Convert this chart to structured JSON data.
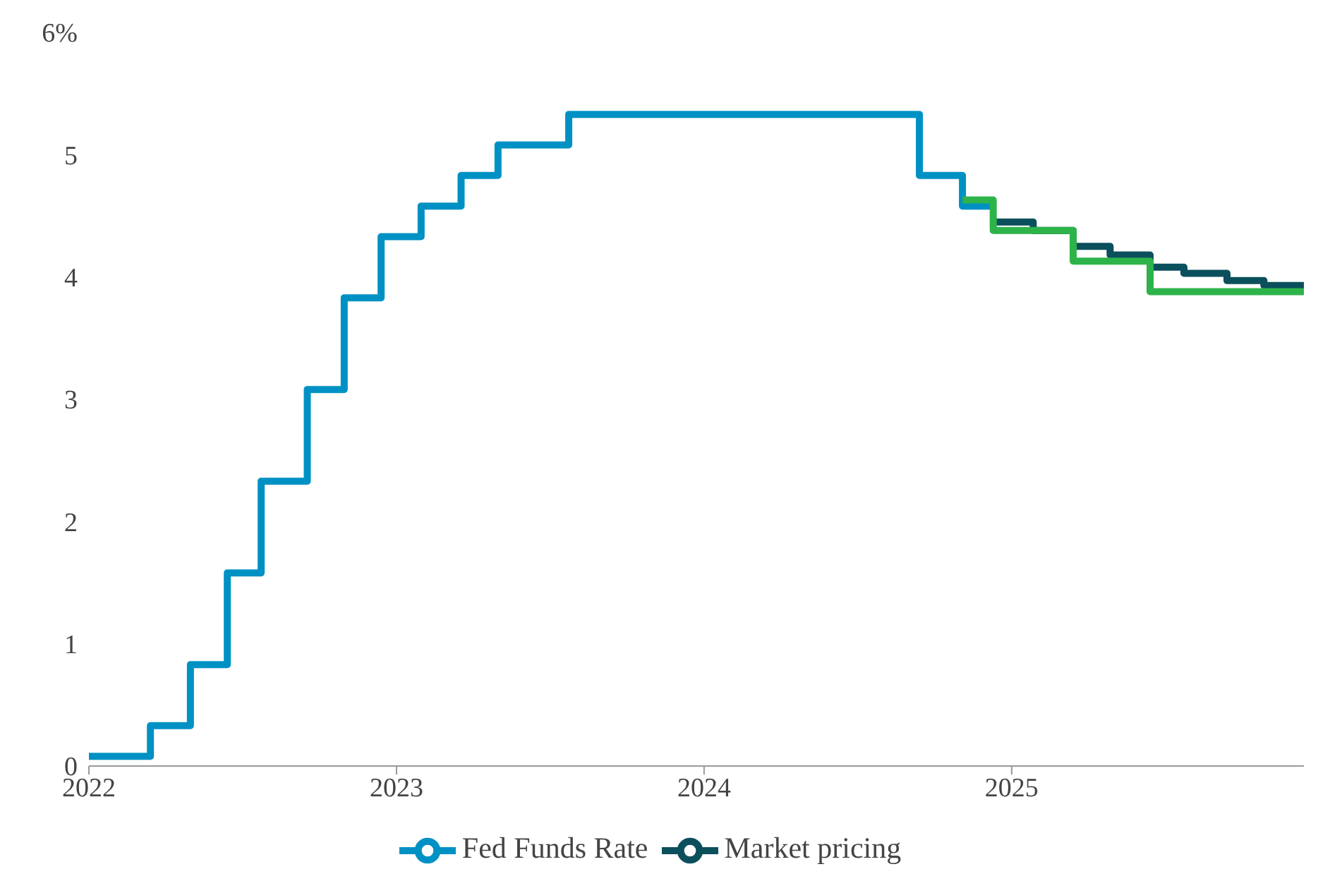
{
  "chart_data": {
    "type": "step",
    "xlim": [
      2022,
      2025.95
    ],
    "xticks": [
      2022,
      2023,
      2024,
      2025
    ],
    "ylim": [
      0,
      6
    ],
    "yticks": [
      0,
      1,
      2,
      3,
      4,
      5,
      {
        "value": 6,
        "label": "6%"
      }
    ],
    "legend": "bottom",
    "line_style": "solid",
    "marker": "none",
    "series": [
      {
        "name": "Fed Funds Rate",
        "color": "#0091c4",
        "x": [
          2022,
          2022.2,
          2022.33,
          2022.45,
          2022.56,
          2022.71,
          2022.83,
          2022.95,
          2023.08,
          2023.21,
          2023.33,
          2023.56,
          2024.7,
          2024.84,
          2024.94
        ],
        "values": [
          0.08,
          0.33,
          0.83,
          1.58,
          2.33,
          3.08,
          3.83,
          4.33,
          4.58,
          4.83,
          5.08,
          5.33,
          4.83,
          4.58,
          4.58
        ]
      },
      {
        "name": "Market pricing",
        "color": "#0b4f5c",
        "x": [
          2024.94,
          2025.07,
          2025.2,
          2025.32,
          2025.45,
          2025.56,
          2025.7,
          2025.82,
          2025.95
        ],
        "values": [
          4.45,
          4.38,
          4.25,
          4.18,
          4.08,
          4.03,
          3.97,
          3.93,
          3.93
        ]
      },
      {
        "color": "#2db34a",
        "x": [
          2024.84,
          2024.94,
          2025.2,
          2025.45,
          2025.95
        ],
        "values": [
          4.63,
          4.38,
          4.13,
          3.88,
          3.88
        ]
      }
    ]
  }
}
